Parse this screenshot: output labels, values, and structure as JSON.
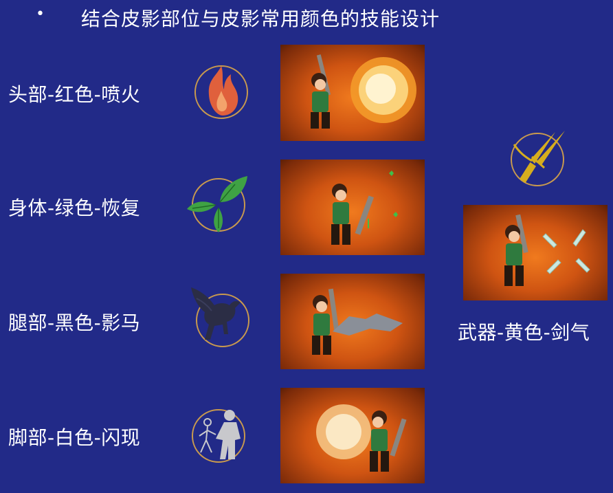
{
  "title": {
    "bullet": "•",
    "text": "结合皮影部位与皮影常用颜色的技能设计"
  },
  "skills": [
    {
      "label": "头部-红色-喷火",
      "icon": "fire-icon",
      "color": "#e0603c"
    },
    {
      "label": "身体-绿色-恢复",
      "icon": "leaf-icon",
      "color": "#3fa244"
    },
    {
      "label": "腿部-黑色-影马",
      "icon": "pegasus-icon",
      "color": "#2b2d45"
    },
    {
      "label": "脚部-白色-闪现",
      "icon": "dash-figure-icon",
      "color": "#c8c8cc"
    },
    {
      "label": "武器-黄色-剑气",
      "icon": "crossed-swords-icon",
      "color": "#d6ad1e"
    }
  ],
  "colors": {
    "background": "#222a88",
    "ring": "#c99a4e",
    "scene": "#d9621a"
  }
}
